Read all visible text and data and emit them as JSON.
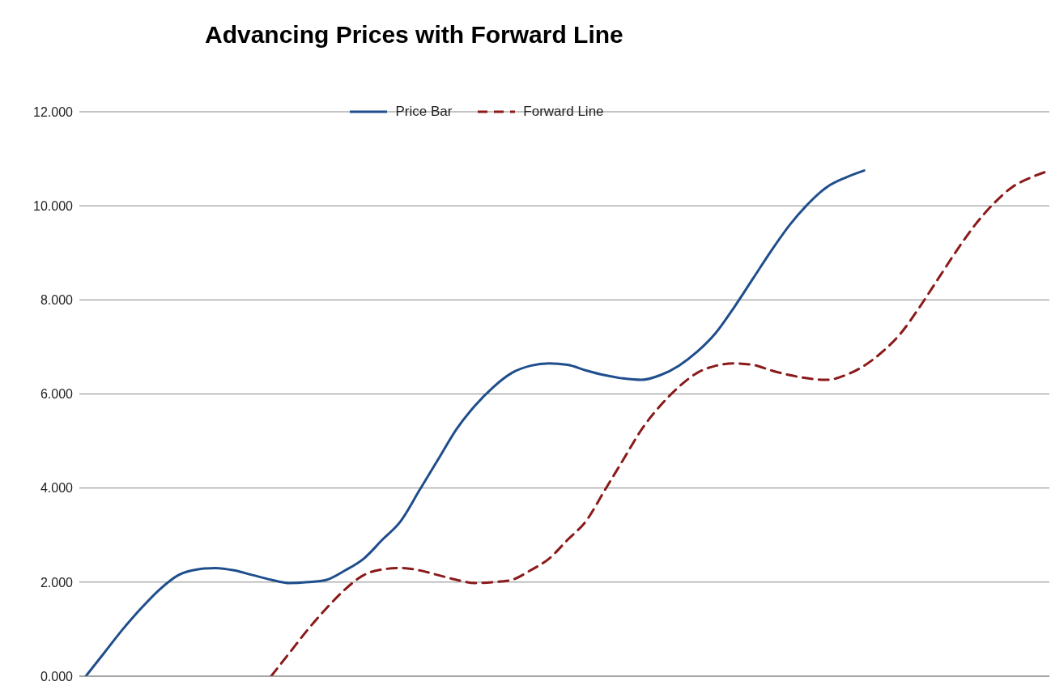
{
  "chart_data": {
    "type": "line",
    "title": "Advancing Prices with Forward Line",
    "categories": [
      null,
      null,
      null,
      null,
      null,
      null,
      null,
      null,
      null,
      null,
      null,
      null,
      null,
      null,
      null,
      null,
      null,
      null,
      null,
      null,
      null,
      null,
      null,
      null,
      null,
      null,
      null,
      null,
      null,
      null,
      null,
      null,
      null,
      null,
      null,
      null,
      null,
      null,
      null,
      null,
      null,
      null,
      null,
      null,
      null,
      null,
      null,
      null,
      null,
      null,
      null,
      null,
      null
    ],
    "series": [
      {
        "name": "Price Bar",
        "color": "#1f4e8c",
        "line_style": "solid",
        "values": [
          0,
          0.5,
          1.0,
          1.45,
          1.85,
          2.15,
          2.27,
          2.3,
          2.25,
          2.15,
          2.05,
          1.98,
          2.0,
          2.05,
          2.25,
          2.5,
          2.9,
          3.3,
          3.95,
          4.6,
          5.25,
          5.75,
          6.15,
          6.45,
          6.6,
          6.65,
          6.62,
          6.5,
          6.4,
          6.33,
          6.3,
          6.4,
          6.6,
          6.9,
          7.3,
          7.85,
          8.45,
          9.05,
          9.6,
          10.05,
          10.4,
          10.6,
          10.75,
          null,
          null,
          null,
          null,
          null,
          null,
          null,
          null,
          null,
          null
        ]
      },
      {
        "name": "Forward Line",
        "color": "#8b1a1a",
        "line_style": "dashed",
        "values": [
          null,
          null,
          null,
          null,
          null,
          null,
          null,
          null,
          null,
          null,
          0,
          0.5,
          1.0,
          1.45,
          1.85,
          2.15,
          2.27,
          2.3,
          2.25,
          2.15,
          2.05,
          1.98,
          2.0,
          2.05,
          2.25,
          2.5,
          2.9,
          3.3,
          3.95,
          4.6,
          5.25,
          5.75,
          6.15,
          6.45,
          6.6,
          6.65,
          6.62,
          6.5,
          6.4,
          6.33,
          6.3,
          6.4,
          6.6,
          6.9,
          7.3,
          7.85,
          8.45,
          9.05,
          9.6,
          10.05,
          10.4,
          10.6,
          10.75
        ]
      }
    ],
    "ylim": [
      0,
      12
    ],
    "yticks": [
      {
        "value": 0,
        "label": "0.000"
      },
      {
        "value": 2,
        "label": "2.000"
      },
      {
        "value": 4,
        "label": "4.000"
      },
      {
        "value": 6,
        "label": "6.000"
      },
      {
        "value": 8,
        "label": "8.000"
      },
      {
        "value": 10,
        "label": "10.000"
      },
      {
        "value": 12,
        "label": "12.000"
      }
    ],
    "grid": "y",
    "legend": "top",
    "tick_labels": "y",
    "marker": "none"
  }
}
